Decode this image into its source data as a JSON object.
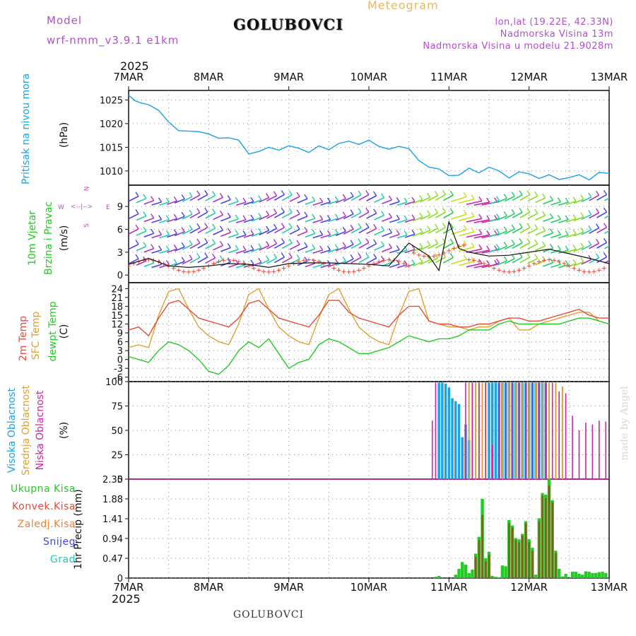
{
  "header": {
    "model_label": "Model",
    "model_name": "wrf-nmm_v3.9.1 e1km",
    "station": "GOLUBOVCI",
    "product": "Meteogram",
    "lonlat": "lon,lat (19.22E, 42.33N)",
    "elevation": "Nadmorska Visina 13m",
    "model_elevation": "Nadmorska Visina u modelu 21.9028m",
    "credit": "made by Angel",
    "footer_station": "GOLUBOVCI"
  },
  "time_axis": {
    "year": "2025",
    "labels": [
      "7MAR",
      "8MAR",
      "9MAR",
      "10MAR",
      "11MAR",
      "12MAR",
      "13MAR"
    ],
    "range_hours": [
      0,
      144
    ]
  },
  "colors": {
    "pressure": "#1aa3e8",
    "temp2m": "#e84a3a",
    "sfc": "#e0a030",
    "dewpt": "#22cc22",
    "high_cloud": "#1aa3e8",
    "mid_cloud": "#e0a030",
    "low_cloud": "#cc22aa",
    "total_precip": "#22cc22",
    "conv_precip": "#e84a3a",
    "frozen_precip": "#f08030",
    "snow": "#4444ee",
    "hail": "#22ccaa",
    "wind_label": "#cc44cc"
  },
  "panels": {
    "pressure": {
      "label": "Pritisak na nivou mora",
      "unit": "(hPa)"
    },
    "wind": {
      "label1": "10m Vjetar",
      "label2": "Brzina i Pravac",
      "unit": "(m/s)",
      "compass_n": "N",
      "compass_s": "S",
      "compass_w": "W",
      "compass_e": "E"
    },
    "temp": {
      "label_t2m": "2m Temp",
      "label_sfc": "SFC Temp",
      "label_dew": "dewpt Temp",
      "unit": "(C)"
    },
    "cloud": {
      "label_high": "Visoka Oblacnost",
      "label_mid": "Srednja Oblacnost",
      "label_low": "Niska Oblacnost",
      "unit": "(%)"
    },
    "precip": {
      "legend": [
        "Ukupna Kisa",
        "Konvek.Kisa",
        "Zaledj.Kisa",
        "Snijeg",
        "Grad"
      ],
      "ylabel": "1hr Precip (mm)"
    }
  },
  "chart_data": [
    {
      "type": "line",
      "name": "pressure",
      "ylim": [
        1007,
        1027
      ],
      "yticks": [
        1010,
        1015,
        1020,
        1025
      ],
      "series": [
        {
          "name": "Pritisak na nivou mora",
          "x": [
            0,
            2,
            4,
            6,
            9,
            12,
            15,
            18,
            21,
            24,
            27,
            30,
            33,
            36,
            39,
            42,
            45,
            48,
            51,
            54,
            57,
            60,
            63,
            66,
            69,
            72,
            75,
            78,
            81,
            84,
            87,
            90,
            93,
            96,
            99,
            102,
            105,
            108,
            111,
            114,
            117,
            120,
            123,
            126,
            129,
            132,
            135,
            138,
            141,
            144
          ],
          "values": [
            1026.0,
            1024.8,
            1024.3,
            1024.0,
            1022.8,
            1020.3,
            1018.5,
            1018.4,
            1018.3,
            1017.8,
            1016.9,
            1017.0,
            1016.5,
            1013.6,
            1014.1,
            1015.0,
            1014.4,
            1015.3,
            1014.8,
            1013.9,
            1015.3,
            1014.5,
            1015.8,
            1016.3,
            1015.6,
            1016.5,
            1015.2,
            1014.6,
            1015.2,
            1014.7,
            1012.2,
            1010.8,
            1010.4,
            1009.0,
            1009.1,
            1010.6,
            1009.6,
            1010.8,
            1010.0,
            1008.5,
            1009.8,
            1009.4,
            1008.4,
            1009.2,
            1008.2,
            1008.6,
            1009.2,
            1008.1,
            1009.7,
            1009.5
          ]
        }
      ]
    },
    {
      "type": "line",
      "name": "wind",
      "ylim": [
        -1,
        11.8
      ],
      "yticks": [
        0,
        3,
        6,
        9
      ],
      "series": [
        {
          "name": "10m wind speed",
          "x": [
            0,
            6,
            12,
            18,
            24,
            30,
            36,
            42,
            48,
            54,
            60,
            66,
            72,
            78,
            84,
            90,
            93,
            96,
            99,
            102,
            108,
            114,
            120,
            126,
            132,
            138,
            144
          ],
          "values": [
            1.4,
            2.2,
            1.2,
            1.0,
            1.2,
            1.5,
            1.4,
            1.0,
            1.5,
            1.6,
            1.6,
            1.5,
            1.4,
            1.2,
            4.2,
            2.5,
            0.6,
            7.0,
            3.5,
            3.0,
            2.5,
            2.6,
            3.0,
            3.4,
            2.8,
            2.2,
            1.5
          ]
        }
      ]
    },
    {
      "type": "line",
      "name": "temperature",
      "ylim": [
        -7.5,
        26
      ],
      "yticks": [
        -6,
        -3,
        0,
        3,
        6,
        9,
        12,
        15,
        18,
        21,
        24
      ],
      "series": [
        {
          "name": "2m Temp",
          "x": [
            0,
            3,
            6,
            9,
            12,
            15,
            18,
            21,
            24,
            27,
            30,
            33,
            36,
            39,
            42,
            45,
            48,
            51,
            54,
            57,
            60,
            63,
            66,
            69,
            72,
            75,
            78,
            81,
            84,
            87,
            90,
            93,
            96,
            99,
            102,
            105,
            108,
            111,
            114,
            117,
            120,
            123,
            126,
            129,
            132,
            135,
            138,
            141,
            144
          ],
          "values": [
            10,
            11,
            8,
            14,
            19,
            20,
            17,
            14,
            13,
            12,
            11,
            14,
            19,
            20,
            17,
            14,
            13,
            12,
            11,
            15,
            20,
            20,
            16,
            14,
            13,
            12,
            11,
            15,
            18,
            18,
            13,
            12,
            12,
            11,
            11,
            12,
            12,
            13,
            14,
            14,
            13,
            13,
            14,
            15,
            16,
            17,
            15,
            14,
            14
          ]
        },
        {
          "name": "SFC Temp",
          "x": [
            0,
            3,
            6,
            9,
            12,
            15,
            18,
            21,
            24,
            27,
            30,
            33,
            36,
            39,
            42,
            45,
            48,
            51,
            54,
            57,
            60,
            63,
            66,
            69,
            72,
            75,
            78,
            81,
            84,
            87,
            90,
            93,
            96,
            99,
            102,
            105,
            108,
            111,
            114,
            117,
            120,
            123,
            126,
            129,
            132,
            135,
            138,
            141,
            144
          ],
          "values": [
            4,
            5,
            4,
            15,
            23,
            24,
            17,
            11,
            8,
            6,
            5,
            12,
            22,
            24,
            17,
            11,
            8,
            6,
            5,
            14,
            22,
            24,
            17,
            11,
            8,
            6,
            5,
            15,
            23,
            24,
            13,
            12,
            11,
            11,
            10,
            11,
            11,
            13,
            14,
            10,
            10,
            12,
            13,
            14,
            15,
            16,
            16,
            13,
            12
          ]
        },
        {
          "name": "dewpt Temp",
          "x": [
            0,
            3,
            6,
            9,
            12,
            15,
            18,
            21,
            24,
            27,
            30,
            33,
            36,
            39,
            42,
            45,
            48,
            51,
            54,
            57,
            60,
            63,
            66,
            69,
            72,
            75,
            78,
            81,
            84,
            87,
            90,
            93,
            96,
            99,
            102,
            105,
            108,
            111,
            114,
            117,
            120,
            123,
            126,
            129,
            132,
            135,
            138,
            141,
            144
          ],
          "values": [
            1,
            0,
            -1,
            3,
            6,
            5,
            3,
            0,
            -4,
            -5,
            -2,
            3,
            6,
            4,
            7,
            2,
            -3,
            -1,
            0,
            5,
            7,
            6,
            4,
            2,
            2,
            3,
            4,
            6,
            8,
            7,
            6,
            7,
            7,
            8,
            10,
            10,
            10,
            12,
            13,
            12,
            12,
            12,
            12,
            12,
            13,
            14,
            14,
            13,
            12
          ]
        }
      ]
    },
    {
      "type": "bar",
      "name": "cloud",
      "ylim": [
        0,
        100
      ],
      "yticks": [
        0,
        25,
        50,
        75,
        100
      ],
      "series": [
        {
          "name": "Visoka Oblacnost",
          "x": [
            93,
            94,
            95,
            96,
            97,
            98,
            99,
            100,
            101,
            102,
            108,
            109,
            110,
            111,
            112,
            113,
            114,
            115,
            116,
            117,
            118,
            119,
            120,
            121,
            122,
            123,
            124,
            125
          ],
          "values": [
            99,
            99,
            98,
            94,
            83,
            80,
            77,
            43,
            56,
            40,
            99,
            99,
            99,
            99,
            99,
            99,
            99,
            99,
            99,
            99,
            99,
            99,
            99,
            99,
            99,
            99,
            99,
            99
          ]
        },
        {
          "name": "Srednja Oblacnost",
          "x": [
            102,
            103,
            104,
            105,
            106,
            107,
            112,
            114,
            116,
            118,
            120,
            122,
            124,
            126,
            128,
            130
          ],
          "values": [
            99,
            99,
            99,
            99,
            99,
            99,
            99,
            99,
            99,
            99,
            99,
            99,
            99,
            99,
            99,
            95
          ]
        },
        {
          "name": "Niska Oblacnost",
          "x": [
            91,
            92,
            101,
            103,
            105,
            107,
            109,
            111,
            113,
            115,
            117,
            119,
            121,
            123,
            125,
            127,
            129,
            131,
            133,
            135,
            137,
            139,
            141,
            143
          ],
          "values": [
            60,
            99,
            99,
            99,
            99,
            99,
            35,
            99,
            99,
            99,
            99,
            99,
            99,
            99,
            99,
            99,
            90,
            88,
            65,
            50,
            58,
            56,
            60,
            59
          ]
        }
      ]
    },
    {
      "type": "bar",
      "name": "precipitation",
      "ylim": [
        0,
        2.35
      ],
      "yticks": [
        0,
        0.47,
        0.94,
        1.41,
        1.88,
        2.35
      ],
      "series": [
        {
          "name": "Ukupna Kisa",
          "x": [
            92,
            93,
            98,
            99,
            100,
            101,
            102,
            103,
            104,
            105,
            106,
            107,
            108,
            109,
            110,
            111,
            112,
            113,
            114,
            115,
            116,
            117,
            118,
            119,
            120,
            121,
            122,
            123,
            124,
            125,
            126,
            127,
            128,
            129,
            130,
            131,
            133,
            134,
            135,
            136,
            137,
            138,
            139,
            140,
            141,
            142,
            143
          ],
          "values": [
            0.03,
            0.05,
            0.08,
            0.22,
            0.38,
            0.32,
            0.12,
            0.2,
            0.58,
            0.98,
            1.88,
            0.47,
            0.62,
            0.05,
            0.03,
            0.02,
            0.3,
            0.28,
            1.38,
            1.25,
            0.95,
            0.92,
            1.05,
            1.35,
            0.92,
            0.72,
            0.08,
            1.42,
            2.02,
            1.98,
            2.35,
            1.85,
            0.65,
            0.22,
            0.04,
            0.1,
            0.15,
            0.15,
            0.1,
            0.08,
            0.16,
            0.15,
            0.12,
            0.12,
            0.14,
            0.15,
            0.12
          ]
        },
        {
          "name": "Konvek.Kisa",
          "x": [
            104,
            105,
            106,
            107,
            108,
            114,
            115,
            116,
            117,
            118,
            119,
            120,
            121,
            123,
            124,
            125,
            126,
            127,
            128
          ],
          "values": [
            0.5,
            0.9,
            1.5,
            0.4,
            0.55,
            1.3,
            1.2,
            0.9,
            0.85,
            1.0,
            1.3,
            0.85,
            0.65,
            1.35,
            1.95,
            1.9,
            2.2,
            1.8,
            0.6
          ]
        }
      ]
    }
  ]
}
